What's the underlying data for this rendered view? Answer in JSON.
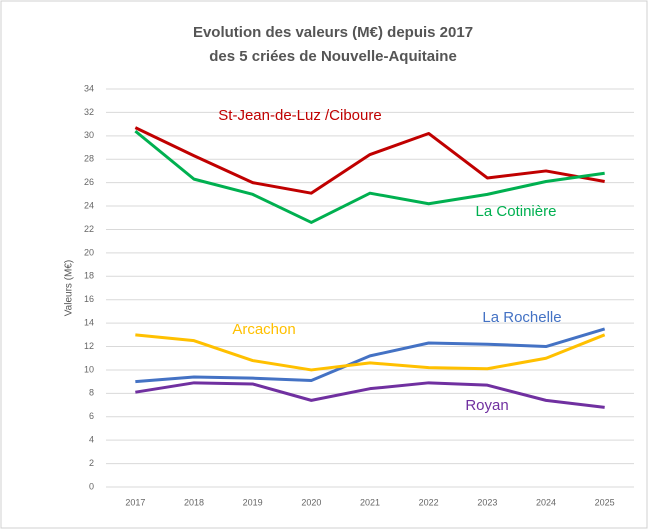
{
  "chart_data": {
    "type": "line",
    "title": "Evolution des valeurs (M€) depuis 2017",
    "subtitle": "des 5 criées de Nouvelle-Aquitaine",
    "y_label": "Valeurs (M€)",
    "categories": [
      "2017",
      "2018",
      "2019",
      "2020",
      "2021",
      "2022",
      "2023",
      "2024",
      "2025"
    ],
    "series": [
      {
        "name": "St-Jean-de-Luz /Ciboure",
        "color": "#c00000",
        "values": [
          30.7,
          28.3,
          26.0,
          25.1,
          28.4,
          30.2,
          26.4,
          27.0,
          26.1
        ]
      },
      {
        "name": "La Cotinière",
        "color": "#00b050",
        "values": [
          30.4,
          26.3,
          25.0,
          22.6,
          25.1,
          24.2,
          25.0,
          26.1,
          26.8
        ]
      },
      {
        "name": "La Rochelle",
        "color": "#4472c4",
        "values": [
          9.0,
          9.4,
          9.3,
          9.1,
          11.2,
          12.3,
          12.2,
          12.0,
          13.5
        ]
      },
      {
        "name": "Arcachon",
        "color": "#ffc000",
        "values": [
          13.0,
          12.5,
          10.8,
          10.0,
          10.6,
          10.2,
          10.1,
          11.0,
          13.0
        ]
      },
      {
        "name": "Royan",
        "color": "#7030a0",
        "values": [
          8.1,
          8.9,
          8.8,
          7.4,
          8.4,
          8.9,
          8.7,
          7.4,
          6.8
        ]
      }
    ],
    "ylim": [
      0,
      34
    ],
    "yticks": [
      0,
      2,
      4,
      6,
      8,
      10,
      12,
      14,
      16,
      18,
      20,
      22,
      24,
      26,
      28,
      30,
      32,
      34
    ],
    "grid": true
  }
}
